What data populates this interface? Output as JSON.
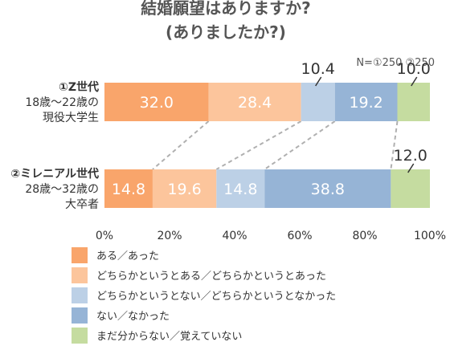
{
  "chart_data": {
    "type": "bar",
    "orientation": "horizontal",
    "stacked": "percent",
    "title": [
      "結婚願望はありますか?",
      "(ありましたか?)"
    ],
    "note": "N=①250 ②250",
    "categories": [
      [
        "①Z世代",
        "18歳〜22歳の",
        "現役大学生"
      ],
      [
        "②ミレニアル世代",
        "28歳〜32歳の",
        "大卒者"
      ]
    ],
    "series": [
      {
        "name": "ある／あった",
        "color": "#f9a56b",
        "values": [
          32.0,
          14.8
        ]
      },
      {
        "name": "どちらかというとある／どちらかというとあった",
        "color": "#fcc59c",
        "values": [
          28.4,
          19.6
        ]
      },
      {
        "name": "どちらかというとない／どちらかというとなかった",
        "color": "#bcd0e6",
        "values": [
          10.4,
          14.8
        ]
      },
      {
        "name": "ない／なかった",
        "color": "#96b4d6",
        "values": [
          19.2,
          38.8
        ]
      },
      {
        "name": "まだ分からない／覚えていない",
        "color": "#c5dca0",
        "values": [
          10.0,
          12.0
        ]
      }
    ],
    "xlim": [
      0,
      100
    ],
    "xticks": [
      "0%",
      "20%",
      "40%",
      "60%",
      "80%",
      "100%"
    ],
    "grid": false,
    "legend_position": "bottom"
  }
}
